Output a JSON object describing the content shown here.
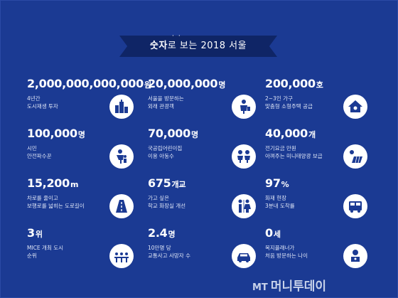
{
  "title": {
    "highlight": "숫자",
    "rest": "로 보는 2018 서울"
  },
  "stats": [
    {
      "value": "2,000,000,000,000",
      "unit": "원",
      "desc1": "4년간",
      "desc2": "도시재생 투자",
      "icon": "city-buildings-icon"
    },
    {
      "value": "20,000,000",
      "unit": "명",
      "desc1": "서울을 방문하는",
      "desc2": "외래 관광객",
      "icon": "tourist-icon"
    },
    {
      "value": "200,000",
      "unit": "호",
      "desc1": "2~3인 가구",
      "desc2": "맞춤형 소형주택 공급",
      "icon": "house-icon"
    },
    {
      "value": "100,000",
      "unit": "명",
      "desc1": "시민",
      "desc2": "안전파수꾼",
      "icon": "guardian-icon"
    },
    {
      "value": "70,000",
      "unit": "명",
      "desc1": "국공립어린이집",
      "desc2": "이용 아동수",
      "icon": "children-icon"
    },
    {
      "value": "40,000",
      "unit": "개",
      "desc1": "전기요금 만원",
      "desc2": "아껴주는 미니태양광 보급",
      "icon": "solar-panel-icon"
    },
    {
      "value": "15,200",
      "unit": "m",
      "desc1": "차로를 줄이고",
      "desc2": "보행로를 넓히는 도로길이",
      "icon": "road-icon"
    },
    {
      "value": "675",
      "unit": "개교",
      "desc1": "가고 싶은",
      "desc2": "학교 화장실 개선",
      "icon": "restroom-icon"
    },
    {
      "value": "97",
      "unit": "%",
      "desc1": "화재 현장",
      "desc2": "3분내 도착률",
      "icon": "fire-truck-icon"
    },
    {
      "value": "3",
      "unit": "위",
      "desc1": "MICE 개최 도시",
      "desc2": "순위",
      "icon": "conference-icon"
    },
    {
      "value": "2.4",
      "unit": "명",
      "desc1": "10만명 당",
      "desc2": "교통사고 사망자 수",
      "icon": "car-accident-icon"
    },
    {
      "value": "0",
      "unit": "세",
      "desc1": "복지플래너가",
      "desc2": "처음 방문하는 나이",
      "icon": "baby-icon"
    }
  ],
  "logo": {
    "mt": "MT",
    "name": "머니투데이"
  },
  "colors": {
    "background": "#1b3a93",
    "banner": "#0f2566",
    "icon_fill": "#1b3a93",
    "text": "#ffffff"
  }
}
